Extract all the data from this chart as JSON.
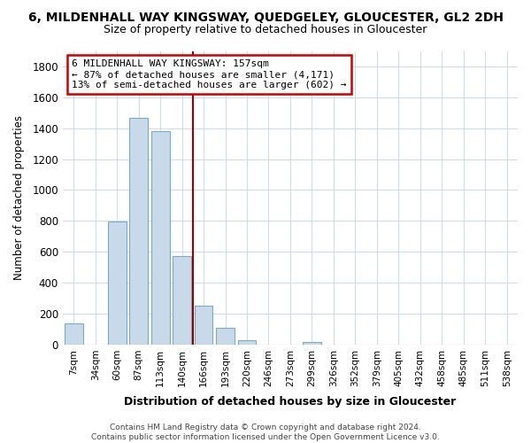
{
  "title": "6, MILDENHALL WAY KINGSWAY, QUEDGELEY, GLOUCESTER, GL2 2DH",
  "subtitle": "Size of property relative to detached houses in Gloucester",
  "xlabel": "Distribution of detached houses by size in Gloucester",
  "ylabel": "Number of detached properties",
  "bar_labels": [
    "7sqm",
    "34sqm",
    "60sqm",
    "87sqm",
    "113sqm",
    "140sqm",
    "166sqm",
    "193sqm",
    "220sqm",
    "246sqm",
    "273sqm",
    "299sqm",
    "326sqm",
    "352sqm",
    "379sqm",
    "405sqm",
    "432sqm",
    "458sqm",
    "485sqm",
    "511sqm",
    "538sqm"
  ],
  "bar_values": [
    135,
    0,
    795,
    1470,
    1380,
    575,
    250,
    110,
    30,
    0,
    0,
    15,
    0,
    0,
    0,
    0,
    0,
    0,
    0,
    0,
    0
  ],
  "bar_color": "#c8daea",
  "bar_edge_color": "#7aaaca",
  "vline_color": "#9b0000",
  "annotation_line1": "6 MILDENHALL WAY KINGSWAY: 157sqm",
  "annotation_line2": "← 87% of detached houses are smaller (4,171)",
  "annotation_line3": "13% of semi-detached houses are larger (602) →",
  "annotation_box_edge": "#cc0000",
  "ylim": [
    0,
    1900
  ],
  "yticks": [
    0,
    200,
    400,
    600,
    800,
    1000,
    1200,
    1400,
    1600,
    1800
  ],
  "footer": "Contains HM Land Registry data © Crown copyright and database right 2024.\nContains public sector information licensed under the Open Government Licence v3.0.",
  "bg_color": "#ffffff",
  "plot_bg_color": "#ffffff",
  "grid_color": "#d0dce8",
  "title_fontsize": 10,
  "subtitle_fontsize": 9
}
